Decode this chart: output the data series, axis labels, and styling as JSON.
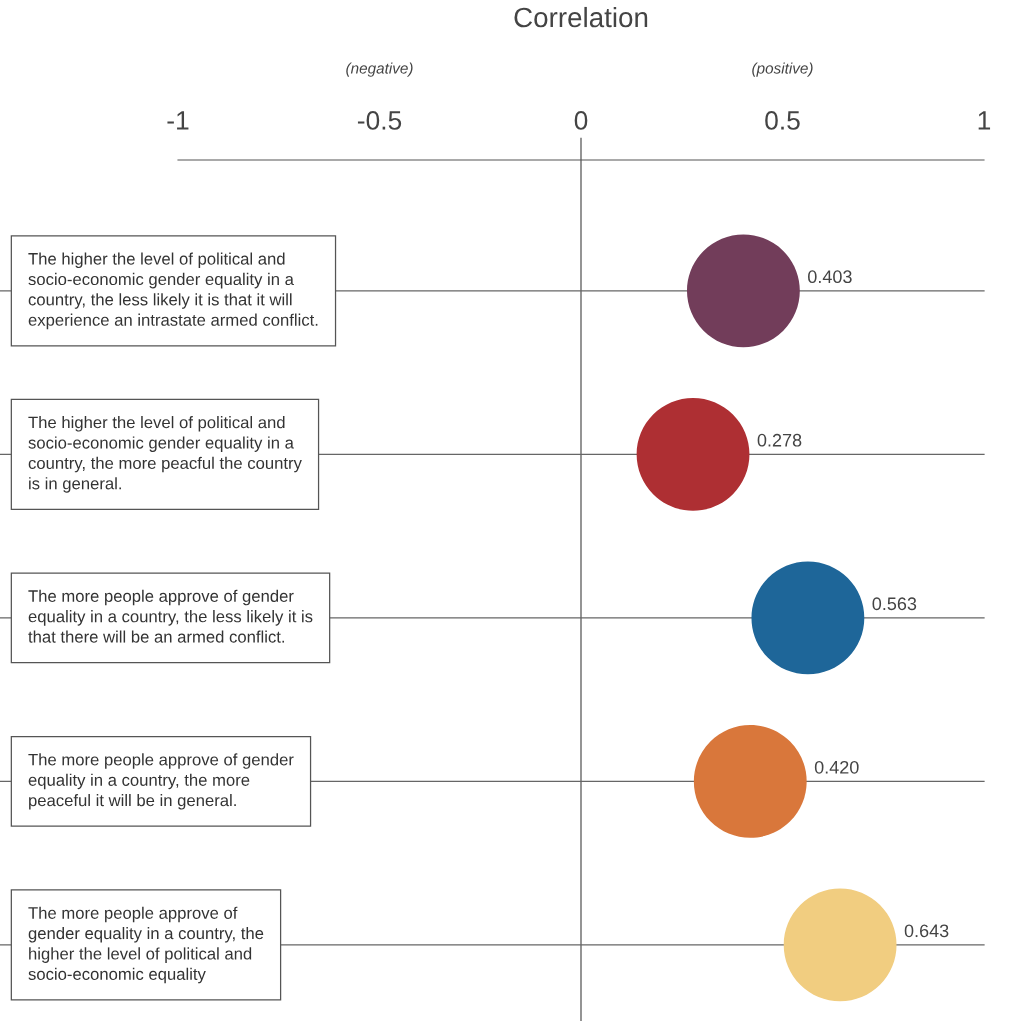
{
  "chart_data": {
    "type": "scatter",
    "orientation": "horizontal",
    "xlabel": "Correlation",
    "annotations": [
      "(negative)",
      "(positive)"
    ],
    "categories": [
      "The higher the level of political and\nsocio-economic gender equality in a\ncountry, the less likely it is that it will\nexperience an intrastate armed conflict.",
      "The higher the level of political and\nsocio-economic gender equality in a\ncountry, the more peacful the country\nis in general.",
      "The more people approve of gender\nequality in a country, the less likely it is\nthat there will be an armed conflict.",
      "The more people approve of gender\nequality in a country, the more\npeaceful it will be in general.",
      "The more people approve of\ngender equality in a country, the\nhigher the level of political and\nsocio-economic equality"
    ],
    "values": [
      0.403,
      0.278,
      0.563,
      0.42,
      0.643
    ],
    "value_labels": [
      "0.403",
      "0.278",
      "0.563",
      "0.420",
      "0.643"
    ],
    "colors": [
      "#723d5a",
      "#ae2f33",
      "#1e6699",
      "#d9773b",
      "#f1cd80"
    ],
    "xlim": [
      -1,
      1
    ],
    "xticks": [
      -1,
      -0.5,
      0,
      0.5,
      1
    ],
    "ref_lines": [
      {
        "axis": "x",
        "value": 0,
        "color": "#666666"
      }
    ],
    "grid": "y",
    "marker": "circle"
  }
}
